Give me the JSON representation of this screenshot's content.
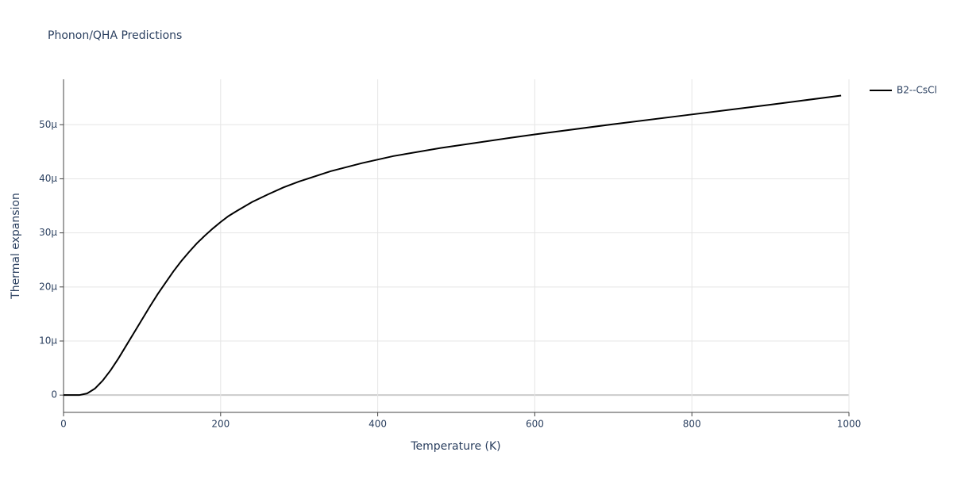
{
  "chart_data": {
    "type": "line",
    "title": "Phonon/QHA Predictions",
    "x_label": "Temperature (K)",
    "y_label": "Thermal expansion",
    "x": [
      0,
      10,
      20,
      30,
      40,
      50,
      60,
      70,
      80,
      90,
      100,
      110,
      120,
      130,
      140,
      150,
      160,
      170,
      180,
      190,
      200,
      210,
      220,
      240,
      260,
      280,
      300,
      340,
      380,
      420,
      480,
      570,
      600,
      700,
      800,
      900,
      990
    ],
    "series": [
      {
        "name": "B2--CsCl",
        "color": "#000000",
        "values": [
          0,
          0,
          0,
          3e-07,
          1.2e-06,
          2.7e-06,
          4.6e-06,
          6.8e-06,
          9.2e-06,
          1.16e-05,
          1.4e-05,
          1.64e-05,
          1.87e-05,
          2.08e-05,
          2.29e-05,
          2.48e-05,
          2.65e-05,
          2.81e-05,
          2.95e-05,
          3.08e-05,
          3.2e-05,
          3.31e-05,
          3.4e-05,
          3.57e-05,
          3.71e-05,
          3.84e-05,
          3.95e-05,
          4.14e-05,
          4.29e-05,
          4.42e-05,
          4.57e-05,
          4.76e-05,
          4.82e-05,
          5.01e-05,
          5.19e-05,
          5.37e-05,
          5.54e-05
        ]
      }
    ],
    "xlim": [
      0,
      1000
    ],
    "xticks": [
      0,
      200,
      400,
      600,
      800,
      1000
    ],
    "ylim": [
      -3.2e-06,
      5.84e-05
    ],
    "yticks": [
      0,
      {
        "value": 1e-05,
        "label": "10μ"
      },
      {
        "value": 2e-05,
        "label": "20μ"
      },
      {
        "value": 3e-05,
        "label": "30μ"
      },
      {
        "value": 4e-05,
        "label": "40μ"
      },
      {
        "value": 5e-05,
        "label": "50μ"
      }
    ],
    "grid": true,
    "legend": "right"
  }
}
